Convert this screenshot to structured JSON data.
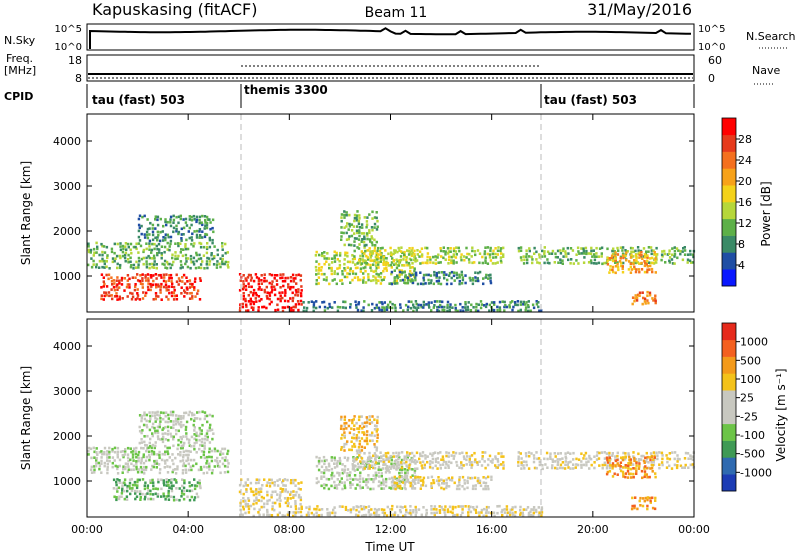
{
  "header": {
    "station": "Kapuskasing (fitACF)",
    "beam": "Beam 11",
    "date": "31/May/2016"
  },
  "panels": {
    "nsky": {
      "label": "N.Sky",
      "ticks": [
        "10^5",
        "10^0"
      ],
      "right_label": "N.Search",
      "right_ticks": [
        "10^5",
        "10^0"
      ]
    },
    "freq": {
      "label_line1": "Freq.",
      "label_line2": "[MHz]",
      "ticks": [
        "18",
        "8"
      ],
      "right_label": "Nave",
      "right_ticks": [
        "60",
        "0"
      ]
    },
    "cpid": {
      "label": "CPID",
      "segments": [
        {
          "label": "tau (fast) 503",
          "start_hour": 0
        },
        {
          "label": "themis 3300",
          "start_hour": 6
        },
        {
          "label": "tau (fast) 503",
          "start_hour": 18
        }
      ]
    }
  },
  "chart_data": [
    {
      "type": "heatmap",
      "title": "",
      "parameter": "Power",
      "unit": "[dB]",
      "colorbar_label": "Power [dB]",
      "ylabel": "Slant Range [km]",
      "yticks": [
        1000,
        2000,
        3000,
        4000
      ],
      "ylim": [
        200,
        4600
      ],
      "xlim": [
        0,
        24
      ],
      "colorbar_ticks": [
        "4",
        "8",
        "12",
        "16",
        "20",
        "24",
        "28"
      ],
      "colorbar_colors": [
        "#0a18ff",
        "#1f4ea4",
        "#3a8a66",
        "#5db048",
        "#b6d73a",
        "#f4d21a",
        "#f7a21a",
        "#f4701f",
        "#e63a1c",
        "#ff0000"
      ],
      "scatter_regions": [
        {
          "t0": 0.0,
          "t1": 5.6,
          "r0": 1200,
          "r1": 1800,
          "level": 3
        },
        {
          "t0": 0.5,
          "t1": 4.5,
          "r0": 500,
          "r1": 1100,
          "level": 8
        },
        {
          "t0": 2.0,
          "t1": 5.0,
          "r0": 1800,
          "r1": 2400,
          "level": 2
        },
        {
          "t0": 6.0,
          "t1": 8.5,
          "r0": 250,
          "r1": 1100,
          "level": 9
        },
        {
          "t0": 8.5,
          "t1": 18.0,
          "r0": 250,
          "r1": 500,
          "level": 2
        },
        {
          "t0": 9.0,
          "t1": 13.0,
          "r0": 850,
          "r1": 1600,
          "level": 4
        },
        {
          "t0": 10.5,
          "t1": 16.5,
          "r0": 1300,
          "r1": 1700,
          "level": 4
        },
        {
          "t0": 10.0,
          "t1": 11.5,
          "r0": 1700,
          "r1": 2500,
          "level": 3
        },
        {
          "t0": 17.0,
          "t1": 24.0,
          "r0": 1300,
          "r1": 1700,
          "level": 3
        },
        {
          "t0": 20.5,
          "t1": 22.5,
          "r0": 1100,
          "r1": 1600,
          "level": 6
        },
        {
          "t0": 12.0,
          "t1": 16.0,
          "r0": 850,
          "r1": 1150,
          "level": 2
        },
        {
          "t0": 21.5,
          "t1": 22.5,
          "r0": 400,
          "r1": 700,
          "level": 7
        }
      ]
    },
    {
      "type": "heatmap",
      "title": "",
      "parameter": "Velocity",
      "unit": "[m s⁻¹]",
      "colorbar_label": "Velocity [m s⁻¹]",
      "ylabel": "Slant Range [km]",
      "xlabel": "Time UT",
      "yticks": [
        1000,
        2000,
        3000,
        4000
      ],
      "ylim": [
        200,
        4600
      ],
      "xlim": [
        0,
        24
      ],
      "xticks": [
        "00:00",
        "04:00",
        "08:00",
        "12:00",
        "16:00",
        "20:00",
        "00:00"
      ],
      "colorbar_ticks": [
        "1000",
        "500",
        "100",
        "25",
        "-25",
        "-100",
        "-500",
        "-1000"
      ],
      "colorbar_colors": [
        "#1c3cb4",
        "#2f6ab0",
        "#3f9a55",
        "#6cc447",
        "#c8c8c0",
        "#c8c8c0",
        "#f4c21a",
        "#f49a1a",
        "#f4601f",
        "#e62a1c"
      ],
      "scatter_regions": [
        {
          "t0": 0.0,
          "t1": 5.6,
          "r0": 1200,
          "r1": 1800,
          "level": 4
        },
        {
          "t0": 1.0,
          "t1": 4.5,
          "r0": 600,
          "r1": 1100,
          "level": 3
        },
        {
          "t0": 2.0,
          "t1": 5.0,
          "r0": 1800,
          "r1": 2600,
          "level": 4
        },
        {
          "t0": 6.0,
          "t1": 8.5,
          "r0": 250,
          "r1": 1100,
          "level": 5
        },
        {
          "t0": 8.5,
          "t1": 18.0,
          "r0": 250,
          "r1": 500,
          "level": 5
        },
        {
          "t0": 9.0,
          "t1": 13.0,
          "r0": 850,
          "r1": 1600,
          "level": 4
        },
        {
          "t0": 10.5,
          "t1": 16.5,
          "r0": 1300,
          "r1": 1700,
          "level": 5
        },
        {
          "t0": 10.0,
          "t1": 11.5,
          "r0": 1700,
          "r1": 2500,
          "level": 6
        },
        {
          "t0": 17.0,
          "t1": 24.0,
          "r0": 1300,
          "r1": 1700,
          "level": 5
        },
        {
          "t0": 20.5,
          "t1": 22.5,
          "r0": 1100,
          "r1": 1600,
          "level": 7
        },
        {
          "t0": 12.0,
          "t1": 16.0,
          "r0": 850,
          "r1": 1150,
          "level": 5
        },
        {
          "t0": 21.5,
          "t1": 22.5,
          "r0": 400,
          "r1": 700,
          "level": 7
        }
      ]
    }
  ]
}
